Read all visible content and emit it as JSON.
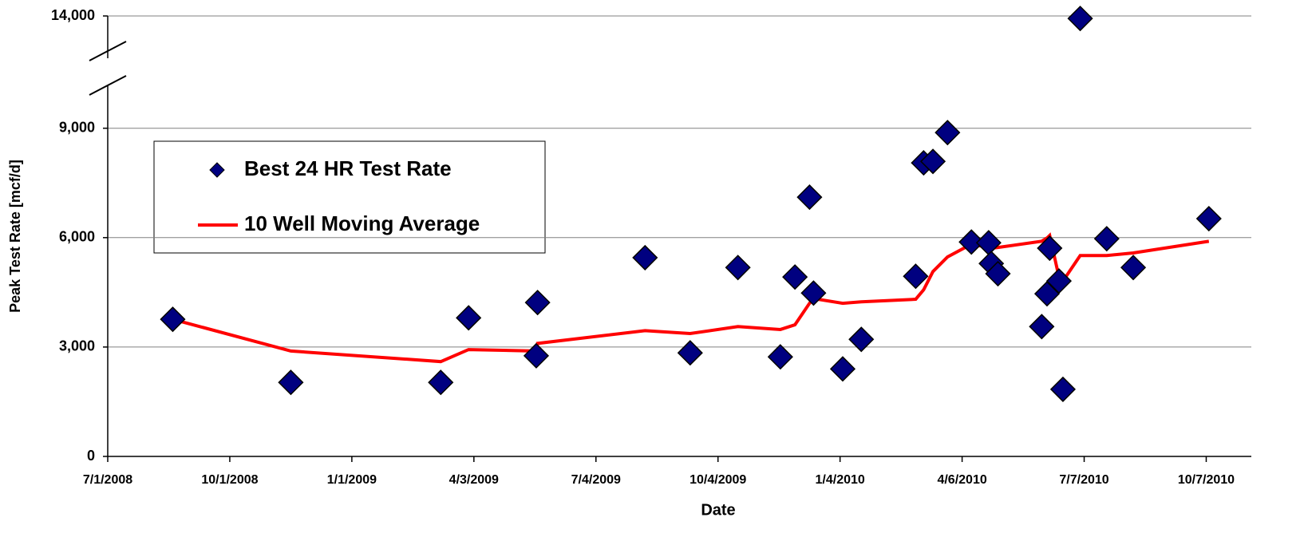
{
  "chart_data": {
    "type": "scatter",
    "x_label": "Date",
    "y_label": "Peak Test Rate [mcf/d]",
    "x": [
      "2008-08-19",
      "2008-11-16",
      "2009-03-09",
      "2009-03-30",
      "2009-05-20",
      "2009-05-21",
      "2009-08-10",
      "2009-09-13",
      "2009-10-19",
      "2009-11-20",
      "2009-12-01",
      "2009-12-12",
      "2009-12-15",
      "2010-01-06",
      "2010-01-20",
      "2010-03-02",
      "2010-03-08",
      "2010-03-15",
      "2010-03-26",
      "2010-04-13",
      "2010-04-26",
      "2010-04-28",
      "2010-05-03",
      "2010-06-05",
      "2010-06-09",
      "2010-06-11",
      "2010-06-18",
      "2010-06-21",
      "2010-07-04",
      "2010-07-24",
      "2010-08-13",
      "2010-10-09"
    ],
    "series": [
      {
        "name": "Best 24 HR Test Rate",
        "type": "scatter",
        "color": "#000080",
        "values": [
          3760,
          2030,
          2030,
          3800,
          2760,
          4220,
          5450,
          2840,
          5180,
          2730,
          4920,
          7110,
          4480,
          2400,
          3210,
          4940,
          8050,
          8090,
          8880,
          5880,
          5860,
          5290,
          5010,
          3560,
          4460,
          5710,
          4810,
          1840,
          13930,
          5970,
          5180,
          6520
        ]
      },
      {
        "name": "10 Well Moving Average",
        "type": "line",
        "color": "#ff0000",
        "values": [
          3760,
          2890,
          2600,
          2930,
          2890,
          3100,
          3450,
          3370,
          3560,
          3480,
          3610,
          4200,
          4330,
          4200,
          4240,
          4310,
          4570,
          5070,
          5470,
          5820,
          5730,
          5710,
          5730,
          5900,
          5990,
          6060,
          4920,
          4810,
          5510,
          5510,
          5580,
          5900
        ]
      }
    ],
    "xlim": [
      "2008-07-01",
      "2010-11-10"
    ],
    "xticks": [
      {
        "value": "2008-07-01",
        "label": "7/1/2008"
      },
      {
        "value": "2008-10-01",
        "label": "10/1/2008"
      },
      {
        "value": "2009-01-01",
        "label": "1/1/2009"
      },
      {
        "value": "2009-04-03",
        "label": "4/3/2009"
      },
      {
        "value": "2009-07-04",
        "label": "7/4/2009"
      },
      {
        "value": "2009-10-04",
        "label": "10/4/2009"
      },
      {
        "value": "2010-01-04",
        "label": "1/4/2010"
      },
      {
        "value": "2010-04-06",
        "label": "4/6/2010"
      },
      {
        "value": "2010-07-07",
        "label": "7/7/2010"
      },
      {
        "value": "2010-10-07",
        "label": "10/7/2010"
      }
    ],
    "ylim": [
      0,
      14000
    ],
    "y_break": [
      10000,
      13000
    ],
    "yticks": [
      0,
      {
        "value": 3000,
        "label": "3,000"
      },
      {
        "value": 6000,
        "label": "6,000"
      },
      {
        "value": 9000,
        "label": "9,000"
      },
      {
        "value": 14000,
        "label": "14,000"
      }
    ],
    "grid": true
  }
}
